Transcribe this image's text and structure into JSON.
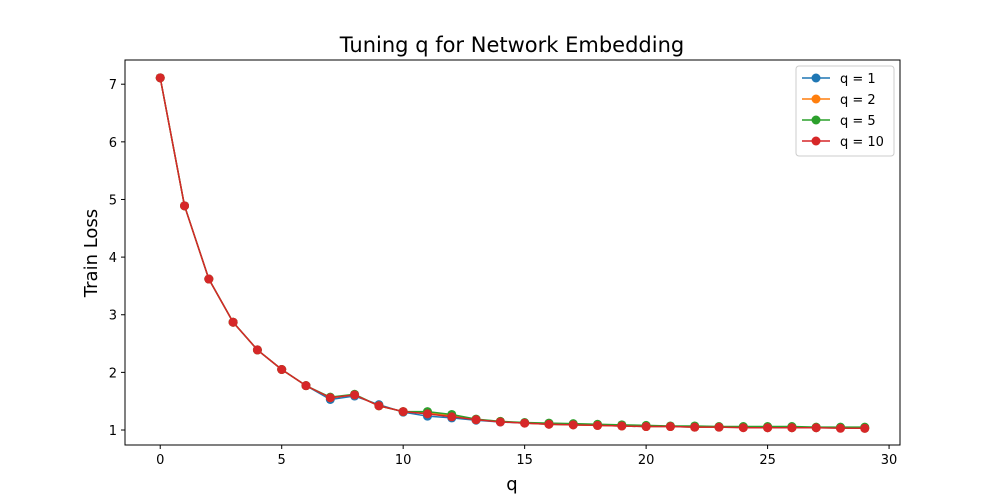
{
  "chart_data": {
    "type": "line",
    "title": "Tuning q for Network Embedding",
    "xlabel": "q",
    "ylabel": "Train Loss",
    "xlim": [
      -1.45,
      30.45
    ],
    "ylim": [
      0.74,
      7.42
    ],
    "xticks": [
      0,
      5,
      10,
      15,
      20,
      25,
      30
    ],
    "yticks": [
      1,
      2,
      3,
      4,
      5,
      6,
      7
    ],
    "grid": false,
    "legend_position": "top-right",
    "x": [
      0,
      1,
      2,
      3,
      4,
      5,
      6,
      7,
      8,
      9,
      10,
      11,
      12,
      13,
      14,
      15,
      16,
      17,
      18,
      19,
      20,
      21,
      22,
      23,
      24,
      25,
      26,
      27,
      28,
      29
    ],
    "series": [
      {
        "name": "q = 1",
        "color": "#1f77b4",
        "values": [
          7.11,
          4.89,
          3.62,
          2.87,
          2.39,
          2.05,
          1.77,
          1.53,
          1.59,
          1.44,
          1.31,
          1.24,
          1.21,
          1.17,
          1.14,
          1.12,
          1.1,
          1.09,
          1.08,
          1.07,
          1.06,
          1.06,
          1.05,
          1.05,
          1.05,
          1.04,
          1.04,
          1.04,
          1.04,
          1.03
        ]
      },
      {
        "name": "q = 2",
        "color": "#ff7f0e",
        "values": [
          7.11,
          4.89,
          3.62,
          2.87,
          2.39,
          2.05,
          1.77,
          1.56,
          1.61,
          1.42,
          1.32,
          1.3,
          1.25,
          1.18,
          1.15,
          1.12,
          1.1,
          1.09,
          1.08,
          1.07,
          1.06,
          1.06,
          1.05,
          1.05,
          1.05,
          1.04,
          1.04,
          1.04,
          1.04,
          1.03
        ]
      },
      {
        "name": "q = 5",
        "color": "#2ca02c",
        "values": [
          7.11,
          4.89,
          3.62,
          2.87,
          2.39,
          2.05,
          1.77,
          1.57,
          1.62,
          1.42,
          1.32,
          1.32,
          1.27,
          1.19,
          1.15,
          1.13,
          1.12,
          1.11,
          1.1,
          1.09,
          1.08,
          1.07,
          1.07,
          1.06,
          1.06,
          1.06,
          1.06,
          1.05,
          1.05,
          1.05
        ]
      },
      {
        "name": "q = 10",
        "color": "#d62728",
        "values": [
          7.11,
          4.89,
          3.62,
          2.87,
          2.39,
          2.05,
          1.77,
          1.56,
          1.61,
          1.42,
          1.32,
          1.28,
          1.23,
          1.18,
          1.14,
          1.12,
          1.1,
          1.09,
          1.08,
          1.07,
          1.06,
          1.06,
          1.05,
          1.05,
          1.04,
          1.04,
          1.04,
          1.04,
          1.03,
          1.03
        ]
      }
    ]
  }
}
